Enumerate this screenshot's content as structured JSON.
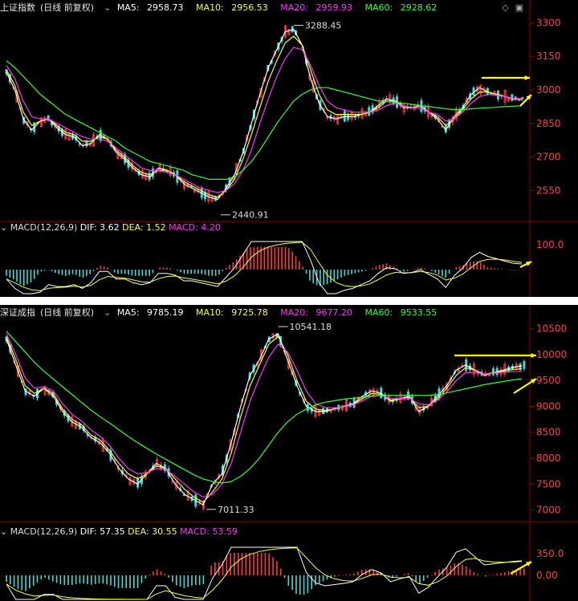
{
  "charts": [
    {
      "index_name": "上证指数",
      "period": "(日线 前复权)",
      "ma": [
        {
          "label": "MA5:",
          "value": "2958.73",
          "color": "#ffffff"
        },
        {
          "label": "MA10:",
          "value": "2956.53",
          "color": "#ffff33"
        },
        {
          "label": "MA20:",
          "value": "2959.93",
          "color": "#ff33ff"
        },
        {
          "label": "MA60:",
          "value": "2928.62",
          "color": "#33ff33"
        }
      ],
      "price_ticks": [
        "3300",
        "3150",
        "3000",
        "2850",
        "2700",
        "2550"
      ],
      "annotations": {
        "high": "3288.45",
        "low": "2440.91"
      },
      "macd": {
        "label": "MACD(12,26,9)",
        "dif_label": "DIF:",
        "dif": "3.62",
        "dea_label": "DEA:",
        "dea": "1.52",
        "macd_label": "MACD:",
        "macd": "4.20",
        "ticks": [
          "100.0"
        ]
      }
    },
    {
      "index_name": "深证成指",
      "period": "(日线 前复权)",
      "ma": [
        {
          "label": "MA5:",
          "value": "9785.19",
          "color": "#ffffff"
        },
        {
          "label": "MA10:",
          "value": "9725.78",
          "color": "#ffff33"
        },
        {
          "label": "MA20:",
          "value": "9677.20",
          "color": "#ff33ff"
        },
        {
          "label": "MA60:",
          "value": "9533.55",
          "color": "#33ff33"
        }
      ],
      "price_ticks": [
        "10500",
        "10000",
        "9500",
        "9000",
        "8500",
        "8000",
        "7500",
        "7000"
      ],
      "annotations": {
        "high": "10541.18",
        "low": "7011.33"
      },
      "macd": {
        "label": "MACD(12,26,9)",
        "dif_label": "DIF:",
        "dif": "57.35",
        "dea_label": "DEA:",
        "dea": "30.55",
        "macd_label": "MACD:",
        "macd": "53.59",
        "ticks": [
          "350.0",
          "0.00"
        ]
      }
    }
  ],
  "colors": {
    "background": "#000000",
    "axis": "#8b0000",
    "up_candle": "#ff3b3b",
    "down_candle": "#41d9d9",
    "arrow": "#ffff00"
  },
  "chart_data": [
    {
      "type": "line",
      "title": "上证指数(日线 前复权)",
      "ylim": [
        2440,
        3330
      ],
      "series": [
        {
          "name": "MA5",
          "values": [
            3080,
            3000,
            2870,
            2820,
            2860,
            2870,
            2830,
            2800,
            2790,
            2750,
            2760,
            2800,
            2780,
            2720,
            2690,
            2650,
            2620,
            2610,
            2650,
            2640,
            2620,
            2580,
            2560,
            2540,
            2520,
            2510,
            2560,
            2620,
            2720,
            2850,
            2980,
            3100,
            3180,
            3260,
            3270,
            3200,
            3050,
            2940,
            2880,
            2870,
            2880,
            2880,
            2890,
            2900,
            2930,
            2960,
            2950,
            2920,
            2920,
            2930,
            2900,
            2870,
            2820,
            2880,
            2920,
            2980,
            3010,
            2990,
            2980,
            2970,
            2960,
            2958.73
          ]
        },
        {
          "name": "MA10",
          "values": [
            3090,
            3020,
            2900,
            2840,
            2860,
            2870,
            2840,
            2810,
            2800,
            2770,
            2770,
            2790,
            2780,
            2730,
            2700,
            2660,
            2630,
            2620,
            2640,
            2640,
            2620,
            2590,
            2570,
            2550,
            2530,
            2520,
            2550,
            2600,
            2690,
            2800,
            2920,
            3040,
            3130,
            3210,
            3240,
            3200,
            3090,
            2980,
            2910,
            2890,
            2890,
            2890,
            2890,
            2900,
            2920,
            2950,
            2950,
            2930,
            2920,
            2920,
            2900,
            2880,
            2840,
            2870,
            2910,
            2960,
            2990,
            2990,
            2980,
            2970,
            2960,
            2956.53
          ]
        },
        {
          "name": "MA20",
          "values": [
            3110,
            3050,
            2950,
            2880,
            2870,
            2870,
            2850,
            2830,
            2810,
            2790,
            2780,
            2780,
            2770,
            2740,
            2710,
            2680,
            2650,
            2640,
            2640,
            2630,
            2620,
            2600,
            2580,
            2560,
            2550,
            2540,
            2550,
            2580,
            2640,
            2730,
            2850,
            2960,
            3060,
            3140,
            3190,
            3180,
            3110,
            3020,
            2950,
            2920,
            2910,
            2900,
            2900,
            2900,
            2910,
            2930,
            2940,
            2930,
            2920,
            2920,
            2900,
            2890,
            2860,
            2870,
            2900,
            2940,
            2970,
            2980,
            2975,
            2970,
            2962,
            2959.93
          ]
        },
        {
          "name": "MA60",
          "values": [
            3130,
            3100,
            3060,
            3020,
            2980,
            2950,
            2920,
            2890,
            2870,
            2850,
            2830,
            2810,
            2790,
            2770,
            2740,
            2720,
            2700,
            2680,
            2670,
            2660,
            2650,
            2640,
            2620,
            2610,
            2600,
            2600,
            2600,
            2610,
            2640,
            2680,
            2730,
            2790,
            2850,
            2900,
            2950,
            2980,
            3000,
            3010,
            3010,
            3000,
            2990,
            2980,
            2970,
            2960,
            2950,
            2950,
            2945,
            2940,
            2935,
            2930,
            2925,
            2920,
            2915,
            2912,
            2912,
            2915,
            2918,
            2920,
            2922,
            2925,
            2927,
            2928.62
          ]
        }
      ],
      "annotations": [
        {
          "label": "3288.45",
          "y": 3288.45
        },
        {
          "label": "2440.91",
          "y": 2440.91
        }
      ]
    },
    {
      "type": "line",
      "title": "深证成指(日线 前复权)",
      "ylim": [
        6900,
        10650
      ],
      "series": [
        {
          "name": "MA5",
          "values": [
            10300,
            9800,
            9300,
            9200,
            9350,
            9200,
            8900,
            8700,
            8600,
            8400,
            8300,
            8100,
            7800,
            7600,
            7500,
            7700,
            7900,
            7800,
            7500,
            7300,
            7200,
            7100,
            7500,
            7700,
            8300,
            9000,
            9600,
            9900,
            10300,
            10400,
            9900,
            9400,
            9000,
            8900,
            8900,
            8950,
            9000,
            9050,
            9200,
            9300,
            9250,
            9100,
            9150,
            9200,
            8900,
            9000,
            9200,
            9400,
            9700,
            9800,
            9700,
            9600,
            9650,
            9700,
            9750,
            9785.19
          ]
        },
        {
          "name": "MA10",
          "values": [
            10350,
            9900,
            9400,
            9250,
            9350,
            9250,
            8950,
            8750,
            8650,
            8450,
            8350,
            8150,
            7900,
            7700,
            7600,
            7700,
            7850,
            7800,
            7600,
            7400,
            7250,
            7150,
            7350,
            7600,
            8100,
            8800,
            9400,
            9800,
            10200,
            10350,
            10000,
            9500,
            9100,
            8950,
            8920,
            8950,
            8990,
            9040,
            9150,
            9250,
            9230,
            9120,
            9140,
            9180,
            8980,
            9000,
            9150,
            9350,
            9600,
            9750,
            9700,
            9620,
            9650,
            9680,
            9710,
            9725.78
          ]
        },
        {
          "name": "MA20",
          "values": [
            10400,
            10000,
            9550,
            9350,
            9380,
            9300,
            9050,
            8850,
            8720,
            8550,
            8420,
            8250,
            8000,
            7800,
            7700,
            7720,
            7800,
            7780,
            7650,
            7500,
            7350,
            7250,
            7300,
            7500,
            7900,
            8500,
            9100,
            9550,
            9950,
            10200,
            10050,
            9700,
            9300,
            9050,
            8980,
            8970,
            8990,
            9030,
            9110,
            9200,
            9210,
            9150,
            9150,
            9160,
            9050,
            9030,
            9120,
            9280,
            9500,
            9650,
            9660,
            9620,
            9640,
            9660,
            9670,
            9677.2
          ]
        },
        {
          "name": "MA60",
          "values": [
            10450,
            10250,
            10050,
            9850,
            9680,
            9530,
            9380,
            9230,
            9080,
            8930,
            8800,
            8680,
            8550,
            8420,
            8300,
            8190,
            8080,
            7980,
            7880,
            7780,
            7680,
            7600,
            7550,
            7520,
            7550,
            7650,
            7800,
            8000,
            8250,
            8500,
            8700,
            8850,
            8950,
            9030,
            9080,
            9110,
            9140,
            9160,
            9180,
            9200,
            9210,
            9210,
            9210,
            9220,
            9210,
            9210,
            9230,
            9260,
            9300,
            9340,
            9380,
            9420,
            9450,
            9480,
            9510,
            9533.55
          ]
        }
      ],
      "annotations": [
        {
          "label": "10541.18",
          "y": 10541.18
        },
        {
          "label": "7011.33",
          "y": 7011.33
        }
      ]
    }
  ]
}
